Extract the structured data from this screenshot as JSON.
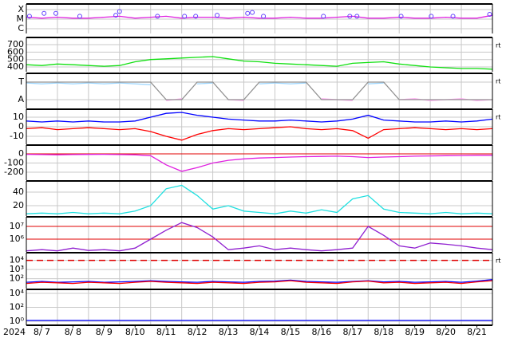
{
  "chart_data": [
    {
      "type": "line",
      "ylim": [
        -6.5,
        -3.42
      ],
      "yticks": [
        {
          "value": -4,
          "label": "X"
        },
        {
          "value": -5,
          "label": "M"
        },
        {
          "value": -6,
          "label": "C"
        }
      ],
      "x": [
        0,
        0.5,
        1,
        1.5,
        2,
        2.5,
        3,
        3.5,
        4,
        4.5,
        5,
        5.5,
        6,
        6.5,
        7,
        7.5,
        8,
        8.5,
        9,
        9.5,
        10,
        10.5,
        11,
        11.5,
        12,
        12.5,
        13,
        13.5,
        14,
        14.5,
        15
      ],
      "series": [
        {
          "color": "#e020e0",
          "values": [
            -4.8,
            -4.9,
            -4.8,
            -4.9,
            -4.9,
            -4.8,
            -4.7,
            -4.9,
            -4.8,
            -4.7,
            -4.9,
            -4.8,
            -4.8,
            -4.9,
            -4.8,
            -4.9,
            -4.9,
            -4.8,
            -4.9,
            -4.9,
            -4.8,
            -4.7,
            -4.9,
            -4.9,
            -4.8,
            -4.9,
            -4.9,
            -4.8,
            -4.9,
            -4.9,
            -4.6
          ]
        }
      ],
      "markers": {
        "color": "#6040ff",
        "x": [
          0.1,
          0.57,
          0.95,
          1.72,
          2.88,
          3.0,
          4.22,
          5.09,
          5.45,
          6.14,
          7.12,
          7.27,
          7.63,
          9.56,
          10.41,
          10.64,
          12.06,
          13.03,
          13.73,
          14.91
        ],
        "values": [
          -4.7,
          -4.4,
          -4.4,
          -4.7,
          -4.6,
          -4.2,
          -4.7,
          -4.7,
          -4.7,
          -4.6,
          -4.4,
          -4.3,
          -4.7,
          -4.7,
          -4.7,
          -4.7,
          -4.7,
          -4.7,
          -4.7,
          -4.5
        ]
      }
    },
    {
      "type": "line",
      "ylim": [
        336,
        797
      ],
      "yticks": [
        700,
        600,
        500,
        400
      ],
      "note": "rt",
      "x": [
        0,
        0.5,
        1,
        1.5,
        2,
        2.5,
        3,
        3.5,
        4,
        4.5,
        5,
        5.5,
        6,
        6.5,
        7,
        7.5,
        8,
        8.5,
        9,
        9.5,
        10,
        10.5,
        11,
        11.5,
        12,
        12.5,
        13,
        13.5,
        14,
        14.5,
        15
      ],
      "series": [
        {
          "color": "#10e010",
          "values": [
            430,
            420,
            440,
            430,
            420,
            410,
            420,
            470,
            500,
            510,
            520,
            530,
            540,
            510,
            480,
            470,
            450,
            440,
            430,
            420,
            410,
            450,
            460,
            470,
            440,
            420,
            400,
            390,
            380,
            380,
            370
          ]
        }
      ]
    },
    {
      "type": "line",
      "ylim": [
        -0.5,
        1.5
      ],
      "yticks": [
        {
          "value": 1,
          "label": "T"
        },
        {
          "value": 0,
          "label": "A"
        }
      ],
      "note": "rt",
      "x": [
        0,
        0.5,
        1,
        1.5,
        2,
        2.5,
        3,
        3.5,
        4,
        4.5,
        5,
        5.5,
        6,
        6.5,
        7,
        7.5,
        8,
        8.5,
        9,
        9.5,
        10,
        10.5,
        11,
        11.5,
        12,
        12.5,
        13,
        13.5,
        14,
        14.5,
        15
      ],
      "series": [
        {
          "color": "#a0d8ff",
          "values": [
            0.95,
            0.9,
            0.95,
            0.9,
            0.95,
            0.9,
            0.95,
            0.9,
            0.85,
            null,
            null,
            0.9,
            0.95,
            null,
            null,
            0.9,
            0.95,
            0.9,
            0.95,
            null,
            null,
            null,
            0.9,
            0.95,
            null,
            null,
            null,
            null,
            null,
            null,
            null
          ]
        },
        {
          "color": "#ffa0f0",
          "values": [
            null,
            null,
            null,
            null,
            null,
            null,
            null,
            null,
            null,
            -0.05,
            0.05,
            null,
            null,
            0.0,
            -0.05,
            null,
            null,
            null,
            null,
            0.05,
            0.0,
            -0.05,
            null,
            null,
            0.0,
            0.05,
            -0.05,
            0.0,
            0.05,
            -0.05,
            0.0
          ]
        },
        {
          "color": "#909090",
          "values": [
            1,
            1,
            1,
            1,
            1,
            1,
            1,
            1,
            1,
            0,
            0,
            1,
            1,
            0,
            0,
            1,
            1,
            1,
            1,
            0,
            0,
            0,
            1,
            1,
            0,
            0,
            0,
            0,
            0,
            0,
            0
          ]
        }
      ]
    },
    {
      "type": "line",
      "ylim": [
        -18.3,
        18.3
      ],
      "yticks": [
        10,
        0,
        -10
      ],
      "note": "rt",
      "x": [
        0,
        0.5,
        1,
        1.5,
        2,
        2.5,
        3,
        3.5,
        4,
        4.5,
        5,
        5.5,
        6,
        6.5,
        7,
        7.5,
        8,
        8.5,
        9,
        9.5,
        10,
        10.5,
        11,
        11.5,
        12,
        12.5,
        13,
        13.5,
        14,
        14.5,
        15
      ],
      "series": [
        {
          "color": "#0000ff",
          "values": [
            6,
            5,
            6,
            5,
            6,
            5,
            5,
            6,
            10,
            14,
            15,
            12,
            10,
            8,
            7,
            6,
            6,
            7,
            6,
            5,
            6,
            8,
            12,
            7,
            6,
            5,
            5,
            6,
            5,
            6,
            8
          ]
        },
        {
          "color": "#ff0000",
          "values": [
            -2,
            -1,
            -3,
            -2,
            -1,
            -2,
            -3,
            -2,
            -5,
            -10,
            -14,
            -8,
            -4,
            -2,
            -3,
            -2,
            -1,
            0,
            -2,
            -3,
            -2,
            -4,
            -12,
            -3,
            -2,
            -1,
            -2,
            -3,
            -2,
            -3,
            -2
          ]
        }
      ]
    },
    {
      "type": "line",
      "ylim": [
        -287,
        96
      ],
      "yticks": [
        0,
        -100,
        -200
      ],
      "reference_lines": [
        0
      ],
      "x": [
        0,
        0.5,
        1,
        1.5,
        2,
        2.5,
        3,
        3.5,
        4,
        4.5,
        5,
        5.5,
        6,
        6.5,
        7,
        7.5,
        8,
        8.5,
        9,
        9.5,
        10,
        10.5,
        11,
        11.5,
        12,
        12.5,
        13,
        13.5,
        14,
        14.5,
        15
      ],
      "series": [
        {
          "color": "#e020e0",
          "values": [
            -5,
            -8,
            -10,
            -8,
            -6,
            -5,
            -8,
            -10,
            -20,
            -120,
            -190,
            -150,
            -100,
            -70,
            -55,
            -45,
            -40,
            -35,
            -30,
            -28,
            -25,
            -30,
            -40,
            -35,
            -30,
            -25,
            -22,
            -20,
            -18,
            -15,
            -15
          ]
        }
      ]
    },
    {
      "type": "line",
      "ylim": [
        4.7,
        56.5
      ],
      "yticks": [
        40,
        20
      ],
      "x": [
        0,
        0.5,
        1,
        1.5,
        2,
        2.5,
        3,
        3.5,
        4,
        4.5,
        5,
        5.5,
        6,
        6.5,
        7,
        7.5,
        8,
        8.5,
        9,
        9.5,
        10,
        10.5,
        11,
        11.5,
        12,
        12.5,
        13,
        13.5,
        14,
        14.5,
        15
      ],
      "series": [
        {
          "color": "#20e0e0",
          "values": [
            8,
            9,
            8,
            10,
            8,
            9,
            8,
            12,
            20,
            45,
            50,
            35,
            15,
            20,
            12,
            10,
            8,
            12,
            9,
            14,
            10,
            30,
            35,
            15,
            10,
            9,
            8,
            10,
            8,
            9,
            8
          ]
        }
      ]
    },
    {
      "type": "line",
      "log": true,
      "ylim": [
        100000,
        56000000
      ],
      "yticks": [
        {
          "value": 10000000,
          "label": "10⁷"
        },
        {
          "value": 1000000,
          "label": "10⁶"
        }
      ],
      "reference_lines": [
        10000000,
        1000000
      ],
      "x": [
        0,
        0.5,
        1,
        1.5,
        2,
        2.5,
        3,
        3.5,
        4,
        4.5,
        5,
        5.5,
        6,
        6.5,
        7,
        7.5,
        8,
        8.5,
        9,
        9.5,
        10,
        10.5,
        11,
        11.5,
        12,
        12.5,
        13,
        13.5,
        14,
        14.5,
        15
      ],
      "series": [
        {
          "color": "#9020d0",
          "values": [
            120000,
            150000,
            120000,
            200000,
            130000,
            150000,
            120000,
            200000,
            1000000,
            5000000,
            20000000,
            8000000,
            1500000,
            150000,
            200000,
            300000,
            150000,
            200000,
            150000,
            120000,
            150000,
            200000,
            10000000,
            2000000,
            300000,
            200000,
            500000,
            400000,
            300000,
            200000,
            150000
          ]
        }
      ]
    },
    {
      "type": "line",
      "log": true,
      "ylim": [
        8.3,
        68000
      ],
      "yticks": [
        {
          "value": 10000,
          "label": "10⁴"
        },
        {
          "value": 1000,
          "label": "10³"
        },
        {
          "value": 100,
          "label": "10²"
        }
      ],
      "threshold": 10000,
      "note": "rt",
      "x": [
        0,
        0.5,
        1,
        1.5,
        2,
        2.5,
        3,
        3.5,
        4,
        4.5,
        5,
        5.5,
        6,
        6.5,
        7,
        7.5,
        8,
        8.5,
        9,
        9.5,
        10,
        10.5,
        11,
        11.5,
        12,
        12.5,
        13,
        13.5,
        14,
        14.5,
        15
      ],
      "series": [
        {
          "color": "#0000ff",
          "values": [
            40,
            50,
            40,
            45,
            50,
            40,
            45,
            50,
            60,
            50,
            45,
            40,
            50,
            45,
            40,
            50,
            55,
            70,
            50,
            45,
            40,
            50,
            60,
            45,
            50,
            40,
            45,
            50,
            40,
            55,
            80
          ]
        },
        {
          "color": "#ff0000",
          "values": [
            30,
            40,
            35,
            30,
            40,
            35,
            30,
            40,
            50,
            40,
            35,
            30,
            40,
            35,
            30,
            40,
            45,
            60,
            40,
            35,
            30,
            45,
            55,
            35,
            40,
            30,
            35,
            40,
            30,
            45,
            60
          ]
        }
      ]
    },
    {
      "type": "line",
      "log": true,
      "ylim": [
        0.27,
        37000
      ],
      "yticks": [
        {
          "value": 10000,
          "label": "10⁴"
        },
        {
          "value": 100,
          "label": "10²"
        },
        {
          "value": 1,
          "label": "10⁰"
        }
      ],
      "x": [
        0,
        0.5,
        1,
        1.5,
        2,
        2.5,
        3,
        3.5,
        4,
        4.5,
        5,
        5.5,
        6,
        6.5,
        7,
        7.5,
        8,
        8.5,
        9,
        9.5,
        10,
        10.5,
        11,
        11.5,
        12,
        12.5,
        13,
        13.5,
        14,
        14.5,
        15
      ],
      "series": [
        {
          "color": "#0000ff",
          "values": [
            1.3,
            1.3,
            1.3,
            1.3,
            1.3,
            1.3,
            1.3,
            1.3,
            1.3,
            1.3,
            1.3,
            1.3,
            1.3,
            1.3,
            1.3,
            1.3,
            1.3,
            1.3,
            1.3,
            1.3,
            1.3,
            1.3,
            1.3,
            1.3,
            1.3,
            1.3,
            1.3,
            1.3,
            1.3,
            1.3,
            1.3
          ]
        }
      ],
      "xlabel": "2024",
      "xgrid": [
        0,
        1,
        2,
        3,
        4,
        5,
        6,
        7,
        8,
        9,
        10,
        11,
        12,
        13,
        14,
        15
      ],
      "xlim": [
        0,
        15
      ],
      "xticks": [
        {
          "value": 0.5,
          "label": "8/ 7"
        },
        {
          "value": 1.5,
          "label": "8/ 8"
        },
        {
          "value": 2.5,
          "label": "8/ 9"
        },
        {
          "value": 3.5,
          "label": "8/10"
        },
        {
          "value": 4.5,
          "label": "8/11"
        },
        {
          "value": 5.5,
          "label": "8/12"
        },
        {
          "value": 6.5,
          "label": "8/13"
        },
        {
          "value": 7.5,
          "label": "8/14"
        },
        {
          "value": 8.5,
          "label": "8/15"
        },
        {
          "value": 9.5,
          "label": "8/16"
        },
        {
          "value": 10.5,
          "label": "8/17"
        },
        {
          "value": 11.5,
          "label": "8/18"
        },
        {
          "value": 12.5,
          "label": "8/19"
        },
        {
          "value": 13.5,
          "label": "8/20"
        },
        {
          "value": 14.5,
          "label": "8/21"
        }
      ]
    }
  ]
}
